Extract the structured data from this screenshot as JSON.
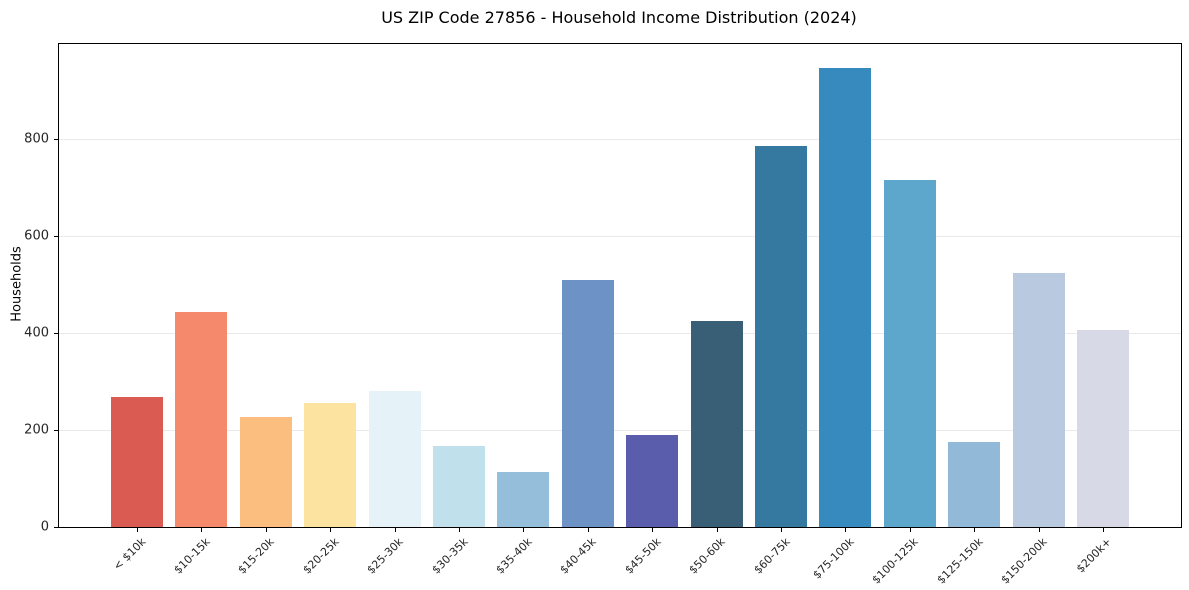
{
  "chart_data": {
    "type": "bar",
    "title": "US ZIP Code 27856 - Household Income Distribution (2024)",
    "xlabel": "",
    "ylabel": "Households",
    "categories": [
      "< $10k",
      "$10-15k",
      "$15-20k",
      "$20-25k",
      "$25-30k",
      "$30-35k",
      "$35-40k",
      "$40-45k",
      "$45-50k",
      "$50-60k",
      "$60-75k",
      "$75-100k",
      "$100-125k",
      "$125-150k",
      "$150-200k",
      "$200k+"
    ],
    "values": [
      268,
      443,
      226,
      256,
      281,
      166,
      113,
      509,
      189,
      425,
      785,
      945,
      714,
      176,
      524,
      405
    ],
    "bar_colors": [
      "#d95b52",
      "#f48a6b",
      "#fcbe7e",
      "#fde3a0",
      "#e5f2f7",
      "#c0e0ec",
      "#95bedb",
      "#6d92c5",
      "#5a5dab",
      "#395f76",
      "#3679a0",
      "#378abe",
      "#5da6cc",
      "#93b9d8",
      "#b9c9e0",
      "#d7d9e6"
    ],
    "yticks": [
      0,
      200,
      400,
      600,
      800
    ],
    "ylim": [
      0,
      995
    ],
    "grid": "horizontal",
    "legend": "none",
    "background": "#ffffff",
    "axis_color": "#000000",
    "grid_color": "#e9e9e9",
    "tick_label_color": "#262626"
  }
}
